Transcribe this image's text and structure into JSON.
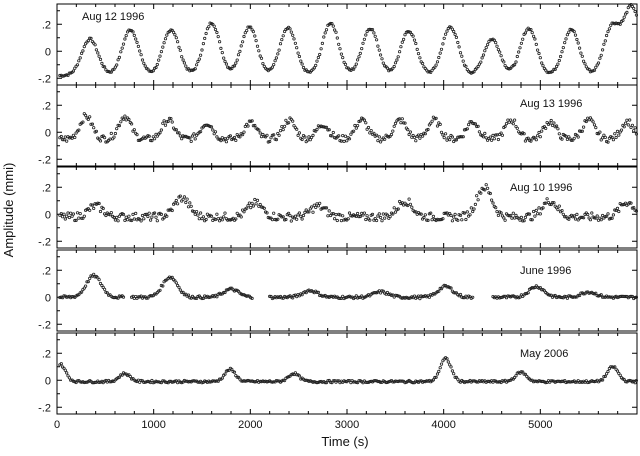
{
  "chart_data": {
    "type": "scatter",
    "xlabel": "Time (s)",
    "ylabel": "Amplitude (mmi)",
    "xlim": [
      0,
      6000
    ],
    "ylim": [
      -0.25,
      0.35
    ],
    "x_ticks": [
      0,
      1000,
      2000,
      3000,
      4000,
      5000
    ],
    "y_ticks": [
      -0.2,
      0,
      0.2
    ],
    "y_tick_labels": [
      "-.2",
      "0",
      ".2"
    ],
    "panels": [
      {
        "label": "Aug 12 1996",
        "baseline": -0.18,
        "peaks": [
          {
            "t": 340,
            "a": 0.09
          },
          {
            "t": 760,
            "a": 0.16
          },
          {
            "t": 1180,
            "a": 0.16
          },
          {
            "t": 1600,
            "a": 0.21
          },
          {
            "t": 1990,
            "a": 0.18
          },
          {
            "t": 2390,
            "a": 0.17
          },
          {
            "t": 2830,
            "a": 0.21
          },
          {
            "t": 3240,
            "a": 0.17
          },
          {
            "t": 3640,
            "a": 0.15
          },
          {
            "t": 4070,
            "a": 0.18
          },
          {
            "t": 4500,
            "a": 0.09
          },
          {
            "t": 4880,
            "a": 0.17
          },
          {
            "t": 5320,
            "a": 0.16
          },
          {
            "t": 5740,
            "a": 0.18
          },
          {
            "t": 5950,
            "a": 0.32
          }
        ]
      },
      {
        "label": "Aug 13 1996",
        "baseline": -0.05,
        "peaks": [
          {
            "t": 300,
            "a": 0.12
          },
          {
            "t": 700,
            "a": 0.12
          },
          {
            "t": 1150,
            "a": 0.09
          },
          {
            "t": 1550,
            "a": 0.07
          },
          {
            "t": 2000,
            "a": 0.07
          },
          {
            "t": 2400,
            "a": 0.09
          },
          {
            "t": 2750,
            "a": 0.06
          },
          {
            "t": 3150,
            "a": 0.09
          },
          {
            "t": 3550,
            "a": 0.09
          },
          {
            "t": 3900,
            "a": 0.09
          },
          {
            "t": 4300,
            "a": 0.08
          },
          {
            "t": 4700,
            "a": 0.09
          },
          {
            "t": 5100,
            "a": 0.08
          },
          {
            "t": 5500,
            "a": 0.09
          },
          {
            "t": 5900,
            "a": 0.08
          }
        ]
      },
      {
        "label": "Aug 10 1996",
        "baseline": -0.02,
        "peaks": [
          {
            "t": 400,
            "a": 0.06
          },
          {
            "t": 1290,
            "a": 0.12
          },
          {
            "t": 2050,
            "a": 0.08
          },
          {
            "t": 2700,
            "a": 0.06
          },
          {
            "t": 3600,
            "a": 0.1
          },
          {
            "t": 4420,
            "a": 0.2
          },
          {
            "t": 5100,
            "a": 0.1
          },
          {
            "t": 5900,
            "a": 0.09
          }
        ]
      },
      {
        "label": "June 1996",
        "baseline": 0.0,
        "peaks": [
          {
            "t": 380,
            "a": 0.16
          },
          {
            "t": 1170,
            "a": 0.15
          },
          {
            "t": 1800,
            "a": 0.06
          },
          {
            "t": 2620,
            "a": 0.05
          },
          {
            "t": 3350,
            "a": 0.04
          },
          {
            "t": 4020,
            "a": 0.08
          },
          {
            "t": 4960,
            "a": 0.08
          },
          {
            "t": 5500,
            "a": 0.04
          }
        ]
      },
      {
        "label": "May 2006",
        "baseline": -0.01,
        "peaks": [
          {
            "t": 30,
            "a": 0.12
          },
          {
            "t": 700,
            "a": 0.05
          },
          {
            "t": 1790,
            "a": 0.08
          },
          {
            "t": 2450,
            "a": 0.05
          },
          {
            "t": 4020,
            "a": 0.16
          },
          {
            "t": 4800,
            "a": 0.06
          },
          {
            "t": 5750,
            "a": 0.1
          }
        ]
      }
    ]
  }
}
